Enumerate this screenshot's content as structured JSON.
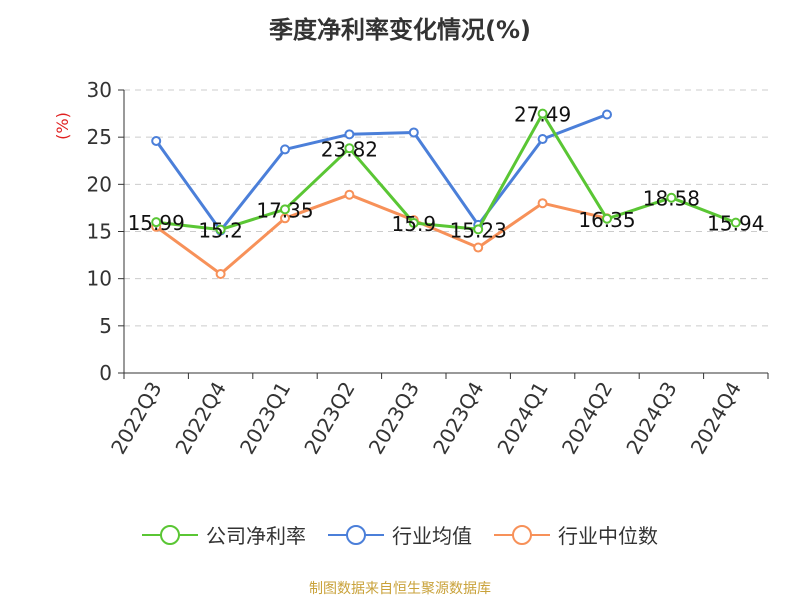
{
  "title": "季度净利率变化情况(%)",
  "source": "制图数据来自恒生聚源数据库",
  "colors": {
    "company": "#5ac634",
    "industry_avg": "#4b7fd9",
    "industry_median": "#f79159"
  },
  "chart_data": {
    "type": "line",
    "ylabel": "(%)",
    "ylim": [
      0,
      30
    ],
    "yticks": [
      "0",
      "5",
      "10",
      "15",
      "20",
      "25",
      "30"
    ],
    "categories": [
      "2022Q3",
      "2022Q4",
      "2023Q1",
      "2023Q2",
      "2023Q3",
      "2023Q4",
      "2024Q1",
      "2024Q2",
      "2024Q3",
      "2024Q4"
    ],
    "grid": true,
    "legend_position": "bottom",
    "series": [
      {
        "name": "公司净利率",
        "key": "company",
        "values": [
          15.99,
          15.2,
          17.35,
          23.82,
          15.9,
          15.23,
          27.49,
          16.35,
          18.58,
          15.94
        ],
        "labels": [
          "15.99",
          "15.2",
          "17.35",
          "23.82",
          "15.9",
          "15.23",
          "27.49",
          "16.35",
          "18.58",
          "15.94"
        ]
      },
      {
        "name": "行业均值",
        "key": "industry_avg",
        "values": [
          24.6,
          15.1,
          23.7,
          25.3,
          25.5,
          15.7,
          24.8,
          27.4,
          null,
          null
        ]
      },
      {
        "name": "行业中位数",
        "key": "industry_median",
        "values": [
          15.5,
          10.5,
          16.4,
          18.9,
          16.2,
          13.3,
          18.0,
          16.4,
          null,
          null
        ]
      }
    ]
  }
}
